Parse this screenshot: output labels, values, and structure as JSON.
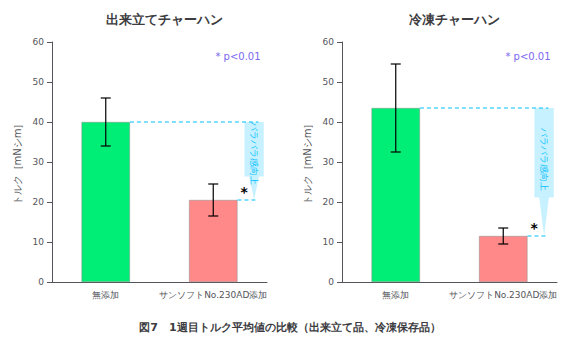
{
  "chart_data": [
    {
      "type": "bar",
      "title": "出来立てチャーハン",
      "categories": [
        "無添加",
        "サンソフトNo.230AD添加"
      ],
      "values": [
        40.0,
        20.5
      ],
      "errors": [
        6.0,
        4.0
      ],
      "colors": [
        "#00EE76",
        "#FF8888"
      ],
      "significance": [
        null,
        "*"
      ],
      "change": {
        "from": 40.0,
        "to": 20.5,
        "label": "パラパラ感向上",
        "color": "#00BFFF"
      },
      "note": "* p<0.01",
      "ylabel": "トルク［mNシm］",
      "ylim": [
        0,
        60
      ],
      "yticks": [
        0,
        10,
        20,
        30,
        40,
        50,
        60
      ],
      "grid": false
    },
    {
      "type": "bar",
      "title": "冷凍チャーハン",
      "categories": [
        "無添加",
        "サンソフトNo.230AD添加"
      ],
      "values": [
        43.5,
        11.5
      ],
      "errors": [
        11.0,
        2.0
      ],
      "colors": [
        "#00EE76",
        "#FF8888"
      ],
      "significance": [
        null,
        "*"
      ],
      "change": {
        "from": 43.5,
        "to": 11.5,
        "label": "パラパラ感向上",
        "color": "#00BFFF"
      },
      "note": "* p<0.01",
      "ylabel": "トルク［mNシm］",
      "ylim": [
        0,
        60
      ],
      "yticks": [
        0,
        10,
        20,
        30,
        40,
        50,
        60
      ],
      "grid": false
    }
  ],
  "footer": "図7　1週目トルク平均値の比較（出来立て品、冷凍保存品）"
}
